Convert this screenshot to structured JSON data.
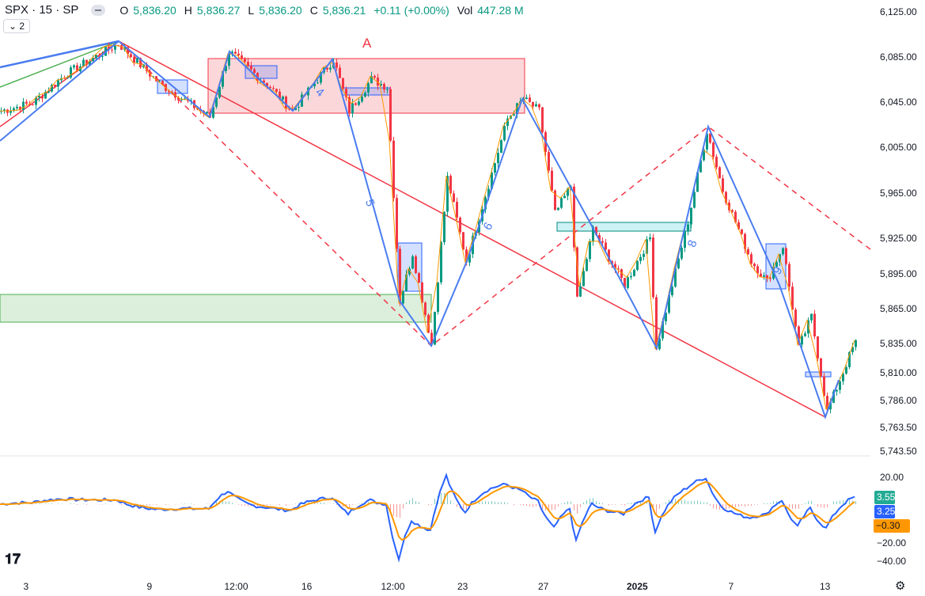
{
  "header": {
    "symbol": "SPX · 15 · SP",
    "open_label": "O",
    "open": "5,836.20",
    "high_label": "H",
    "high": "5,836.27",
    "low_label": "L",
    "low": "5,836.20",
    "close_label": "C",
    "close": "5,836.21",
    "change": "+0.11 (+0.00%)",
    "vol_label": "Vol",
    "vol": "447.28 M",
    "collapse": "2"
  },
  "price_axis": [
    "6,125.00",
    "6,085.00",
    "6,045.00",
    "6,005.00",
    "5,965.00",
    "5,925.00",
    "5,895.00",
    "5,865.00",
    "5,835.00",
    "5,810.00",
    "5,786.00",
    "5,763.50",
    "5,743.50"
  ],
  "osc_axis": [
    "20.00",
    "−20.00",
    "−40.00"
  ],
  "osc_badges": [
    {
      "value": "3.55",
      "color": "#22ab94"
    },
    {
      "value": "3.25",
      "color": "#2962ff"
    },
    {
      "value": "−0.30",
      "color": "#ff9800"
    }
  ],
  "time_axis": [
    "3",
    "9",
    "12:00",
    "16",
    "12:00",
    "23",
    "27",
    "2025",
    "7",
    "13"
  ],
  "annotations": {
    "box_label": "A",
    "wave_labels": [
      "4",
      "5",
      "6",
      "8",
      "9"
    ]
  },
  "colors": {
    "up": "#089981",
    "down": "#f23645",
    "zigzag": "#4a7cf0",
    "trend": "#f23645",
    "orange": "#ff9800"
  },
  "chart_data": {
    "type": "candlestick",
    "title": "SPX · 15 · SP",
    "ylim": [
      5743.5,
      6125
    ],
    "price_path": [
      [
        0,
        6039
      ],
      [
        10,
        6046
      ],
      [
        20,
        6070
      ],
      [
        37,
        6097.5
      ],
      [
        50,
        6063
      ],
      [
        66,
        6033.6
      ],
      [
        72,
        6090.6
      ],
      [
        85,
        6059.7
      ],
      [
        92,
        6039
      ],
      [
        105,
        6083.8
      ],
      [
        110,
        6039
      ],
      [
        117,
        6066.6
      ],
      [
        122,
        6059.7
      ],
      [
        126,
        5874
      ],
      [
        130,
        5915.4
      ],
      [
        136,
        5836.3
      ],
      [
        141,
        5980.7
      ],
      [
        147,
        5908.5
      ],
      [
        160,
        6032.2
      ],
      [
        165,
        6049.4
      ],
      [
        170,
        6039
      ],
      [
        175,
        5949.7
      ],
      [
        180,
        5973.8
      ],
      [
        182,
        5874
      ],
      [
        187,
        5936
      ],
      [
        197,
        5888
      ],
      [
        205,
        5929
      ],
      [
        207,
        5833
      ],
      [
        217,
        5943
      ],
      [
        223,
        6022
      ],
      [
        228,
        5970
      ],
      [
        237,
        5908.5
      ],
      [
        242,
        5891
      ],
      [
        247,
        5922
      ],
      [
        252,
        5833
      ],
      [
        256,
        5860.4
      ],
      [
        261,
        5778
      ],
      [
        265,
        5805.4
      ],
      [
        270,
        5840
      ]
    ]
  }
}
